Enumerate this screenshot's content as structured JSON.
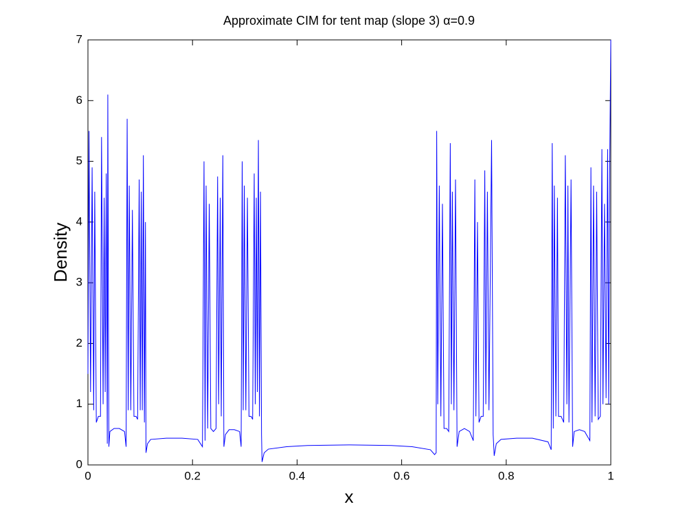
{
  "chart_data": {
    "type": "line",
    "title": "Approximate CIM for tent map (slope 3) α=0.9",
    "x_label": "x",
    "y_label": "Density",
    "xlim": [
      0,
      1
    ],
    "xticks": [
      0,
      0.2,
      0.4,
      0.6,
      0.8,
      1
    ],
    "ylim": [
      0,
      7
    ],
    "yticks": [
      0,
      1,
      2,
      3,
      4,
      5,
      6,
      7
    ],
    "grid": false,
    "x": [
      0,
      0.002,
      0.005,
      0.008,
      0.011,
      0.013,
      0.016,
      0.02,
      0.024,
      0.026,
      0.029,
      0.031,
      0.033,
      0.035,
      0.037,
      0.038,
      0.04,
      0.042,
      0.05,
      0.06,
      0.07,
      0.073,
      0.075,
      0.077,
      0.079,
      0.082,
      0.085,
      0.088,
      0.092,
      0.095,
      0.098,
      0.1,
      0.102,
      0.104,
      0.106,
      0.108,
      0.11,
      0.111,
      0.114,
      0.12,
      0.15,
      0.18,
      0.21,
      0.219,
      0.222,
      0.224,
      0.226,
      0.229,
      0.232,
      0.235,
      0.24,
      0.245,
      0.248,
      0.25,
      0.253,
      0.255,
      0.258,
      0.26,
      0.263,
      0.27,
      0.28,
      0.29,
      0.293,
      0.295,
      0.297,
      0.299,
      0.302,
      0.305,
      0.308,
      0.312,
      0.315,
      0.318,
      0.32,
      0.322,
      0.324,
      0.326,
      0.328,
      0.33,
      0.332,
      0.333,
      0.337,
      0.345,
      0.38,
      0.42,
      0.5,
      0.58,
      0.62,
      0.655,
      0.663,
      0.666,
      0.667,
      0.669,
      0.672,
      0.675,
      0.678,
      0.681,
      0.686,
      0.69,
      0.693,
      0.695,
      0.697,
      0.7,
      0.703,
      0.706,
      0.71,
      0.72,
      0.73,
      0.737,
      0.74,
      0.742,
      0.745,
      0.748,
      0.752,
      0.756,
      0.759,
      0.761,
      0.764,
      0.767,
      0.772,
      0.775,
      0.777,
      0.781,
      0.79,
      0.82,
      0.85,
      0.88,
      0.886,
      0.888,
      0.89,
      0.892,
      0.895,
      0.898,
      0.9,
      0.905,
      0.91,
      0.913,
      0.916,
      0.918,
      0.92,
      0.924,
      0.927,
      0.93,
      0.94,
      0.95,
      0.96,
      0.962,
      0.964,
      0.967,
      0.97,
      0.973,
      0.976,
      0.98,
      0.983,
      0.985,
      0.988,
      0.991,
      0.994,
      0.996,
      0.998,
      1
    ],
    "series": [
      {
        "color": "#0000ff",
        "values": [
          1.5,
          5.5,
          1.2,
          4.9,
          0.9,
          4.5,
          0.7,
          0.8,
          0.8,
          5.4,
          1.0,
          4.4,
          1.2,
          4.8,
          0.35,
          6.1,
          0.3,
          0.55,
          0.6,
          0.6,
          0.55,
          0.3,
          5.7,
          0.9,
          4.6,
          0.9,
          4.2,
          0.8,
          0.8,
          0.75,
          4.7,
          0.9,
          4.5,
          0.9,
          5.1,
          0.7,
          4.0,
          0.2,
          0.35,
          0.42,
          0.44,
          0.44,
          0.42,
          0.3,
          5.0,
          0.4,
          4.6,
          0.6,
          4.3,
          0.6,
          0.55,
          0.6,
          4.75,
          1.0,
          4.4,
          0.8,
          5.1,
          0.3,
          0.5,
          0.58,
          0.58,
          0.55,
          0.3,
          5.0,
          0.9,
          4.6,
          0.9,
          4.4,
          0.8,
          0.8,
          0.75,
          4.8,
          1.0,
          4.4,
          1.2,
          5.35,
          0.8,
          4.5,
          0.5,
          0.05,
          0.2,
          0.26,
          0.3,
          0.32,
          0.33,
          0.32,
          0.3,
          0.25,
          0.17,
          0.2,
          5.5,
          1.0,
          4.6,
          0.8,
          4.3,
          0.6,
          0.6,
          0.55,
          5.3,
          1.0,
          4.5,
          0.9,
          4.7,
          0.3,
          0.55,
          0.6,
          0.55,
          0.4,
          4.7,
          0.8,
          4.0,
          0.7,
          0.8,
          0.8,
          4.85,
          1.0,
          4.5,
          0.9,
          5.35,
          0.5,
          0.15,
          0.35,
          0.42,
          0.44,
          0.44,
          0.38,
          0.25,
          5.3,
          0.6,
          4.6,
          0.8,
          4.4,
          0.8,
          0.8,
          0.7,
          5.1,
          1.0,
          4.6,
          0.7,
          4.7,
          0.3,
          0.55,
          0.58,
          0.55,
          0.4,
          4.9,
          0.7,
          4.6,
          0.8,
          4.5,
          0.75,
          0.8,
          5.2,
          1.0,
          4.3,
          1.1,
          5.2,
          1.0,
          5.0,
          7.0
        ]
      }
    ]
  }
}
